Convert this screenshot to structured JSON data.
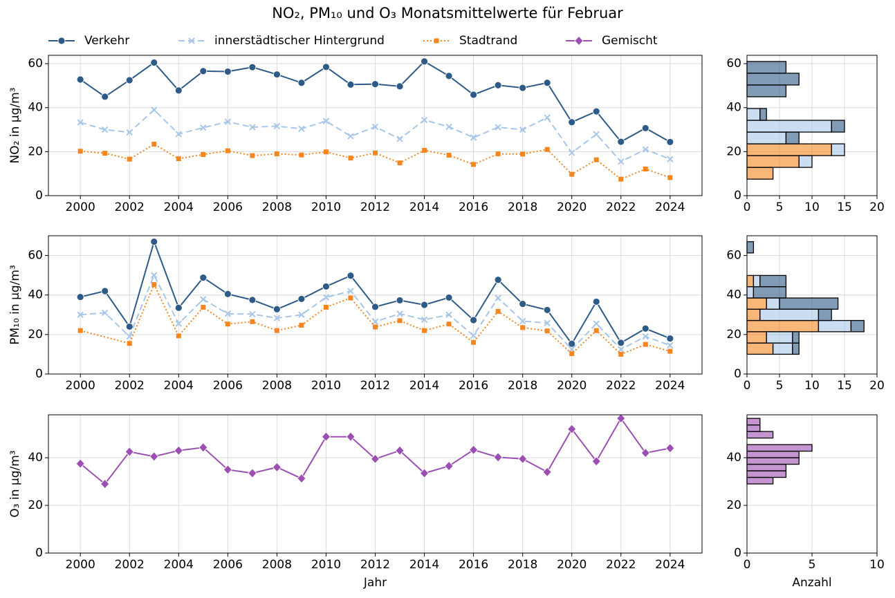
{
  "chart_data": [
    {
      "type": "line",
      "title": "NO₂, PM₁₀ und O₃ Monatsmittelwerte für Februar",
      "ylabel": "NO₂ in µg/m³",
      "x": [
        2000,
        2001,
        2002,
        2003,
        2004,
        2005,
        2006,
        2007,
        2008,
        2009,
        2010,
        2011,
        2012,
        2013,
        2014,
        2015,
        2016,
        2017,
        2018,
        2019,
        2020,
        2021,
        2022,
        2023,
        2024
      ],
      "xlim": [
        1998.7,
        2025.3
      ],
      "xticks": [
        2000,
        2002,
        2004,
        2006,
        2008,
        2010,
        2012,
        2014,
        2016,
        2018,
        2020,
        2022,
        2024
      ],
      "ylim": [
        0,
        63.8
      ],
      "yticks": [
        0,
        20,
        40,
        60
      ],
      "grid": true,
      "series": [
        {
          "name": "Verkehr",
          "color": "#2e5a87",
          "marker": "circle",
          "dash": "solid",
          "values": [
            52.8,
            45,
            52.5,
            60.5,
            47.8,
            56.6,
            56.4,
            58.4,
            55.1,
            51.3,
            58.5,
            50.5,
            50.7,
            49.7,
            61,
            54.4,
            45.9,
            50.2,
            49,
            51.3,
            33.4,
            38.3,
            24.5,
            30.7,
            24.4
          ]
        },
        {
          "name": "innerstädtischer Hintergrund",
          "color": "#a8c6e8",
          "marker": "x",
          "dash": "dashed",
          "values": [
            33.3,
            30,
            28.8,
            39,
            28,
            30.9,
            33.6,
            31.1,
            31.6,
            30.4,
            33.9,
            27,
            31.3,
            25.8,
            34.4,
            31.3,
            26.4,
            31.1,
            30,
            35.5,
            19.5,
            27.9,
            15.5,
            21,
            16.6
          ]
        },
        {
          "name": "Stadtrand",
          "color": "#f5861f",
          "marker": "square",
          "dash": "dotted",
          "values": [
            20.2,
            19.3,
            16.6,
            23.4,
            16.8,
            18.7,
            20.4,
            18.2,
            19,
            18.5,
            19.9,
            17.1,
            19.4,
            14.9,
            20.6,
            18.4,
            14.2,
            19,
            18.9,
            21,
            9.7,
            16.3,
            7.5,
            12.1,
            8.2
          ]
        }
      ]
    },
    {
      "type": "line",
      "ylabel": "PM₁₀ in µg/m³",
      "x": [
        2000,
        2001,
        2002,
        2003,
        2004,
        2005,
        2006,
        2007,
        2008,
        2009,
        2010,
        2011,
        2012,
        2013,
        2014,
        2015,
        2016,
        2017,
        2018,
        2019,
        2020,
        2021,
        2022,
        2023,
        2024
      ],
      "xlim": [
        1998.7,
        2025.3
      ],
      "xticks": [
        2000,
        2002,
        2004,
        2006,
        2008,
        2010,
        2012,
        2014,
        2016,
        2018,
        2020,
        2022,
        2024
      ],
      "ylim": [
        0,
        70
      ],
      "yticks": [
        0,
        20,
        40,
        60
      ],
      "grid": true,
      "series": [
        {
          "color": "#2e5a87",
          "marker": "circle",
          "dash": "solid",
          "values": [
            39,
            42,
            24,
            67,
            33.5,
            48.8,
            40.5,
            37.5,
            32.8,
            38,
            44.3,
            49.8,
            34,
            37.3,
            35,
            38.7,
            27.3,
            47.7,
            35.5,
            32.4,
            15.3,
            36.6,
            15.8,
            23,
            18
          ]
        },
        {
          "color": "#a8c6e8",
          "marker": "x",
          "dash": "dashed",
          "values": [
            30,
            31,
            19,
            50,
            25.5,
            37.8,
            30.5,
            30.3,
            28.3,
            30,
            38.8,
            42,
            26.5,
            30.5,
            27.5,
            30,
            19.5,
            38.5,
            26.8,
            25.8,
            12.5,
            25.5,
            12.5,
            19,
            14.5
          ]
        },
        {
          "color": "#f5861f",
          "marker": "square",
          "dash": "dotted",
          "x": [
            2000,
            2002,
            2003,
            2004,
            2005,
            2006,
            2007,
            2008,
            2009,
            2010,
            2011,
            2012,
            2013,
            2014,
            2015,
            2016,
            2017,
            2018,
            2019,
            2020,
            2021,
            2022,
            2023,
            2024
          ],
          "values": [
            22,
            15.5,
            45.3,
            19.3,
            33.8,
            25.3,
            26.5,
            22,
            24.7,
            33.8,
            38.5,
            23.8,
            27,
            22,
            25.3,
            16,
            31.7,
            23.5,
            21.8,
            10.3,
            22,
            10,
            15,
            11.5
          ]
        }
      ]
    },
    {
      "type": "line",
      "ylabel": "O₃ in µg/m³",
      "xlabel": "Jahr",
      "x": [
        2000,
        2001,
        2002,
        2003,
        2004,
        2005,
        2006,
        2007,
        2008,
        2009,
        2010,
        2011,
        2012,
        2013,
        2014,
        2015,
        2016,
        2017,
        2018,
        2019,
        2020,
        2021,
        2022,
        2023,
        2024
      ],
      "xlim": [
        1998.7,
        2025.3
      ],
      "xticks": [
        2000,
        2002,
        2004,
        2006,
        2008,
        2010,
        2012,
        2014,
        2016,
        2018,
        2020,
        2022,
        2024
      ],
      "ylim": [
        0,
        58
      ],
      "yticks": [
        0,
        20,
        40
      ],
      "grid": true,
      "series": [
        {
          "name": "Gemischt",
          "color": "#9c4fb3",
          "marker": "diamond",
          "dash": "solid",
          "values": [
            37.5,
            29,
            42.5,
            40.5,
            43,
            44.3,
            35,
            33.5,
            36,
            31.3,
            48.8,
            48.8,
            39.5,
            43,
            33.5,
            36.5,
            43.3,
            40.2,
            39.5,
            34,
            52,
            38.5,
            56.5,
            42,
            44
          ]
        }
      ]
    },
    {
      "type": "histogram",
      "orientation": "horizontal",
      "stacked": true,
      "bins": [
        7.5,
        12.85,
        18.2,
        23.55,
        28.9,
        34.25,
        39.6,
        44.95,
        50.3,
        55.65,
        61
      ],
      "xlim": [
        0,
        20
      ],
      "xticks": [
        0,
        5,
        10,
        15,
        20
      ],
      "ylim": [
        0,
        63.8
      ],
      "yticks": [
        0,
        20,
        40,
        60
      ],
      "grid": true,
      "series": [
        {
          "color": "#f5861f",
          "values": [
            4,
            8,
            13,
            0,
            0,
            0,
            0,
            0,
            0,
            0
          ]
        },
        {
          "color": "#a8c6e8",
          "values": [
            0,
            2,
            2,
            6,
            13,
            2,
            0,
            0,
            0,
            0
          ]
        },
        {
          "color": "#2e5a87",
          "values": [
            0,
            0,
            0,
            2,
            2,
            1,
            0,
            6,
            8,
            6
          ]
        }
      ]
    },
    {
      "type": "histogram",
      "orientation": "horizontal",
      "stacked": true,
      "bins": [
        10,
        15.7,
        21.4,
        27.1,
        32.8,
        38.5,
        44.2,
        49.9,
        55.6,
        61.3,
        67
      ],
      "xlim": [
        0,
        20
      ],
      "xticks": [
        0,
        5,
        10,
        15,
        20
      ],
      "ylim": [
        0,
        70
      ],
      "yticks": [
        0,
        20,
        40,
        60
      ],
      "grid": true,
      "series": [
        {
          "color": "#f5861f",
          "values": [
            4,
            3,
            11,
            2,
            3,
            0,
            1,
            0,
            0,
            0
          ]
        },
        {
          "color": "#a8c6e8",
          "values": [
            3,
            4,
            5,
            9,
            2,
            1,
            1,
            0,
            0,
            0
          ]
        },
        {
          "color": "#2e5a87",
          "values": [
            1,
            1,
            2,
            2,
            9,
            5,
            4,
            0,
            0,
            1
          ]
        }
      ]
    },
    {
      "type": "histogram",
      "orientation": "horizontal",
      "stacked": true,
      "xlabel": "Anzahl",
      "bins": [
        29,
        31.75,
        34.5,
        37.25,
        40,
        42.75,
        45.5,
        48.25,
        51,
        53.75,
        56.5
      ],
      "xlim": [
        0,
        10
      ],
      "xticks": [
        0,
        5,
        10
      ],
      "ylim": [
        0,
        58
      ],
      "yticks": [
        0,
        20,
        40
      ],
      "grid": true,
      "series": [
        {
          "color": "#9c4fb3",
          "values": [
            2,
            3,
            3,
            4,
            4,
            5,
            0,
            2,
            1,
            1
          ]
        }
      ]
    }
  ]
}
